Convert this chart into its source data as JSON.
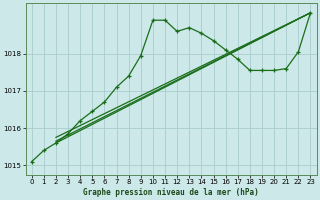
{
  "xlabel": "Graphe pression niveau de la mer (hPa)",
  "bg_color": "#cce8e8",
  "grid_color": "#aacccc",
  "line_color": "#1a6e1a",
  "xlim": [
    -0.5,
    23.5
  ],
  "ylim": [
    1014.75,
    1019.35
  ],
  "yticks": [
    1015,
    1016,
    1017,
    1018
  ],
  "xticks": [
    0,
    1,
    2,
    3,
    4,
    5,
    6,
    7,
    8,
    9,
    10,
    11,
    12,
    13,
    14,
    15,
    16,
    17,
    18,
    19,
    20,
    21,
    22,
    23
  ],
  "line_main": {
    "x": [
      0,
      1,
      2,
      3,
      4,
      5,
      6,
      7,
      8,
      9,
      10,
      11,
      12,
      13,
      14,
      15,
      16,
      17,
      18,
      19,
      20,
      21,
      22,
      23
    ],
    "y": [
      1015.1,
      1015.4,
      1015.6,
      1015.85,
      1016.2,
      1016.45,
      1016.7,
      1017.1,
      1017.4,
      1017.95,
      1018.9,
      1018.9,
      1018.6,
      1018.7,
      1018.55,
      1018.35,
      1018.1,
      1017.85,
      1017.55,
      1017.55,
      1017.55,
      1017.6,
      1018.05,
      1019.1
    ]
  },
  "line_straight1": {
    "x": [
      2,
      23
    ],
    "y": [
      1015.75,
      1019.1
    ]
  },
  "line_straight2": {
    "x": [
      2,
      23
    ],
    "y": [
      1015.65,
      1019.1
    ]
  },
  "line_straight3": {
    "x": [
      2,
      23
    ],
    "y": [
      1015.6,
      1019.1
    ]
  }
}
